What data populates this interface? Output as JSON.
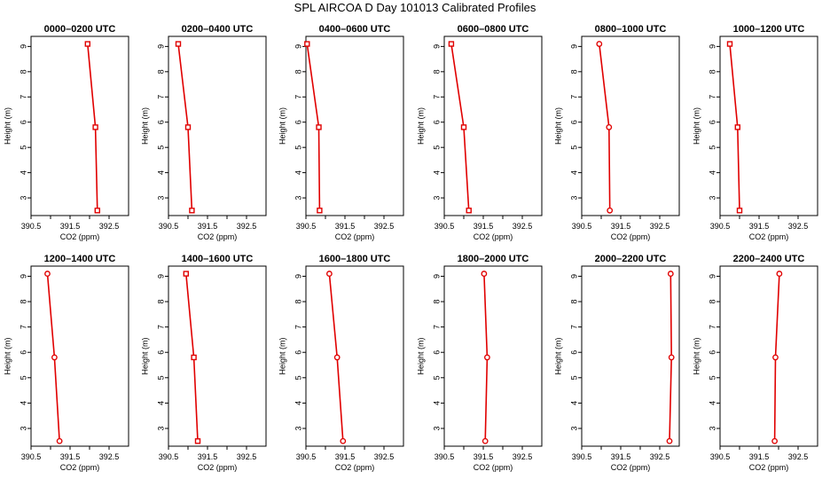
{
  "figure": {
    "title": "SPL AIRCOA D  Day 101013  Calibrated Profiles"
  },
  "colors": {
    "series": "#e00000",
    "axis": "#000000"
  },
  "chart_data": [
    {
      "type": "line",
      "title": "0000–0200 UTC",
      "xlabel": "CO2 (ppm)",
      "ylabel": "Height (m)",
      "xlim": [
        390.5,
        393.0
      ],
      "ylim": [
        2.3,
        9.4
      ],
      "xticks": [
        "390.5",
        "391.5",
        "392.5"
      ],
      "yticks": [
        "3",
        "4",
        "5",
        "6",
        "7",
        "8",
        "9"
      ],
      "marker": "square",
      "x": [
        392.2,
        392.15,
        391.95
      ],
      "y": [
        2.5,
        5.8,
        9.1
      ]
    },
    {
      "type": "line",
      "title": "0200–0400 UTC",
      "xlabel": "CO2 (ppm)",
      "ylabel": "Height (m)",
      "xlim": [
        390.5,
        393.0
      ],
      "ylim": [
        2.3,
        9.4
      ],
      "xticks": [
        "390.5",
        "391.5",
        "392.5"
      ],
      "yticks": [
        "3",
        "4",
        "5",
        "6",
        "7",
        "8",
        "9"
      ],
      "marker": "square",
      "x": [
        391.1,
        391.0,
        390.75
      ],
      "y": [
        2.5,
        5.8,
        9.1
      ]
    },
    {
      "type": "line",
      "title": "0400–0600 UTC",
      "xlabel": "CO2 (ppm)",
      "ylabel": "Height (m)",
      "xlim": [
        390.5,
        393.0
      ],
      "ylim": [
        2.3,
        9.4
      ],
      "xticks": [
        "390.5",
        "391.5",
        "392.5"
      ],
      "yticks": [
        "3",
        "4",
        "5",
        "6",
        "7",
        "8",
        "9"
      ],
      "marker": "square",
      "x": [
        390.85,
        390.83,
        390.53
      ],
      "y": [
        2.5,
        5.8,
        9.1
      ]
    },
    {
      "type": "line",
      "title": "0600–0800 UTC",
      "xlabel": "CO2 (ppm)",
      "ylabel": "Height (m)",
      "xlim": [
        390.5,
        393.0
      ],
      "ylim": [
        2.3,
        9.4
      ],
      "xticks": [
        "390.5",
        "391.5",
        "392.5"
      ],
      "yticks": [
        "3",
        "4",
        "5",
        "6",
        "7",
        "8",
        "9"
      ],
      "marker": "square",
      "x": [
        391.13,
        391.0,
        390.68
      ],
      "y": [
        2.5,
        5.8,
        9.1
      ]
    },
    {
      "type": "line",
      "title": "0800–1000 UTC",
      "xlabel": "CO2 (ppm)",
      "ylabel": "Height (m)",
      "xlim": [
        390.5,
        393.0
      ],
      "ylim": [
        2.3,
        9.4
      ],
      "xticks": [
        "390.5",
        "391.5",
        "392.5"
      ],
      "yticks": [
        "3",
        "4",
        "5",
        "6",
        "7",
        "8",
        "9"
      ],
      "marker": "circle",
      "x": [
        391.22,
        391.2,
        390.95
      ],
      "y": [
        2.5,
        5.8,
        9.1
      ]
    },
    {
      "type": "line",
      "title": "1000–1200 UTC",
      "xlabel": "CO2 (ppm)",
      "ylabel": "Height (m)",
      "xlim": [
        390.5,
        393.0
      ],
      "ylim": [
        2.3,
        9.4
      ],
      "xticks": [
        "390.5",
        "391.5",
        "392.5"
      ],
      "yticks": [
        "3",
        "4",
        "5",
        "6",
        "7",
        "8",
        "9"
      ],
      "marker": "square",
      "x": [
        391.0,
        390.95,
        390.75
      ],
      "y": [
        2.5,
        5.8,
        9.1
      ]
    },
    {
      "type": "line",
      "title": "1200–1400 UTC",
      "xlabel": "CO2 (ppm)",
      "ylabel": "Height (m)",
      "xlim": [
        390.5,
        393.0
      ],
      "ylim": [
        2.3,
        9.4
      ],
      "xticks": [
        "390.5",
        "391.5",
        "392.5"
      ],
      "yticks": [
        "3",
        "4",
        "5",
        "6",
        "7",
        "8",
        "9"
      ],
      "marker": "circle",
      "x": [
        391.23,
        391.1,
        390.92
      ],
      "y": [
        2.5,
        5.8,
        9.1
      ]
    },
    {
      "type": "line",
      "title": "1400–1600 UTC",
      "xlabel": "CO2 (ppm)",
      "ylabel": "Height (m)",
      "xlim": [
        390.5,
        393.0
      ],
      "ylim": [
        2.3,
        9.4
      ],
      "xticks": [
        "390.5",
        "391.5",
        "392.5"
      ],
      "yticks": [
        "3",
        "4",
        "5",
        "6",
        "7",
        "8",
        "9"
      ],
      "marker": "square",
      "x": [
        391.25,
        391.15,
        390.95
      ],
      "y": [
        2.5,
        5.8,
        9.1
      ]
    },
    {
      "type": "line",
      "title": "1600–1800 UTC",
      "xlabel": "CO2 (ppm)",
      "ylabel": "Height (m)",
      "xlim": [
        390.5,
        393.0
      ],
      "ylim": [
        2.3,
        9.4
      ],
      "xticks": [
        "390.5",
        "391.5",
        "392.5"
      ],
      "yticks": [
        "3",
        "4",
        "5",
        "6",
        "7",
        "8",
        "9"
      ],
      "marker": "circle",
      "x": [
        391.45,
        391.3,
        391.1
      ],
      "y": [
        2.5,
        5.8,
        9.1
      ]
    },
    {
      "type": "line",
      "title": "1800–2000 UTC",
      "xlabel": "CO2 (ppm)",
      "ylabel": "Height (m)",
      "xlim": [
        390.5,
        393.0
      ],
      "ylim": [
        2.3,
        9.4
      ],
      "xticks": [
        "390.5",
        "391.5",
        "392.5"
      ],
      "yticks": [
        "3",
        "4",
        "5",
        "6",
        "7",
        "8",
        "9"
      ],
      "marker": "circle",
      "x": [
        391.55,
        391.6,
        391.52
      ],
      "y": [
        2.5,
        5.8,
        9.1
      ]
    },
    {
      "type": "line",
      "title": "2000–2200 UTC",
      "xlabel": "CO2 (ppm)",
      "ylabel": "Height (m)",
      "xlim": [
        390.5,
        393.0
      ],
      "ylim": [
        2.3,
        9.4
      ],
      "xticks": [
        "390.5",
        "391.5",
        "392.5"
      ],
      "yticks": [
        "3",
        "4",
        "5",
        "6",
        "7",
        "8",
        "9"
      ],
      "marker": "circle",
      "x": [
        392.75,
        392.8,
        392.78
      ],
      "y": [
        2.5,
        5.8,
        9.1
      ]
    },
    {
      "type": "line",
      "title": "2200–2400 UTC",
      "xlabel": "CO2 (ppm)",
      "ylabel": "Height (m)",
      "xlim": [
        390.5,
        393.0
      ],
      "ylim": [
        2.3,
        9.4
      ],
      "xticks": [
        "390.5",
        "391.5",
        "392.5"
      ],
      "yticks": [
        "3",
        "4",
        "5",
        "6",
        "7",
        "8",
        "9"
      ],
      "marker": "circle",
      "x": [
        391.9,
        391.92,
        392.02
      ],
      "y": [
        2.5,
        5.8,
        9.1
      ]
    }
  ]
}
